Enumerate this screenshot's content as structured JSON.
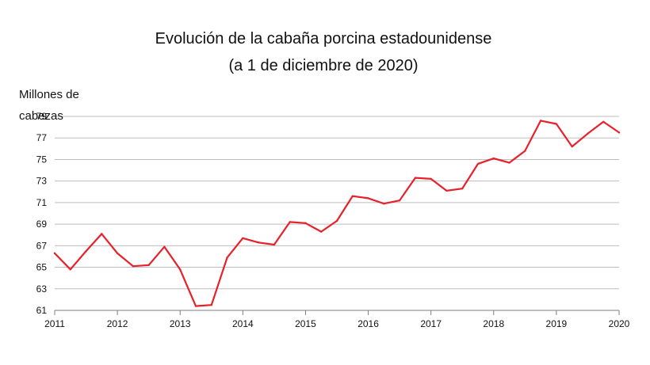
{
  "chart_data": {
    "type": "line",
    "title": [
      "Evolución de la cabaña porcina estadounidense",
      "(a 1 de diciembre de 2020)"
    ],
    "ylabel": [
      "Millones de",
      "cabezas"
    ],
    "xlabel": "",
    "ylim": [
      61,
      79
    ],
    "yticks": [
      61,
      63,
      65,
      67,
      69,
      71,
      73,
      75,
      77,
      79
    ],
    "xlim": [
      2011,
      2020
    ],
    "xticks": [
      2011,
      2012,
      2013,
      2014,
      2015,
      2016,
      2017,
      2018,
      2019,
      2020
    ],
    "grid": true,
    "series": [
      {
        "name": "Cabaña porcina",
        "color": "#e8202a",
        "x": [
          2011.0,
          2011.25,
          2011.5,
          2011.75,
          2012.0,
          2012.25,
          2012.5,
          2012.75,
          2013.0,
          2013.25,
          2013.5,
          2013.75,
          2014.0,
          2014.25,
          2014.5,
          2014.75,
          2015.0,
          2015.25,
          2015.5,
          2015.75,
          2016.0,
          2016.25,
          2016.5,
          2016.75,
          2017.0,
          2017.25,
          2017.5,
          2017.75,
          2018.0,
          2018.25,
          2018.5,
          2018.75,
          2019.0,
          2019.25,
          2019.5,
          2019.75,
          2020.0
        ],
        "values": [
          66.3,
          64.8,
          66.5,
          68.1,
          66.3,
          65.1,
          65.2,
          66.9,
          64.8,
          61.4,
          61.5,
          65.9,
          67.7,
          67.3,
          67.1,
          69.2,
          69.1,
          68.3,
          69.3,
          71.6,
          71.4,
          70.9,
          71.2,
          73.3,
          73.2,
          72.1,
          72.3,
          74.6,
          75.1,
          74.7,
          75.8,
          78.6,
          78.3,
          76.2,
          77.4,
          78.5,
          77.5
        ]
      }
    ]
  }
}
